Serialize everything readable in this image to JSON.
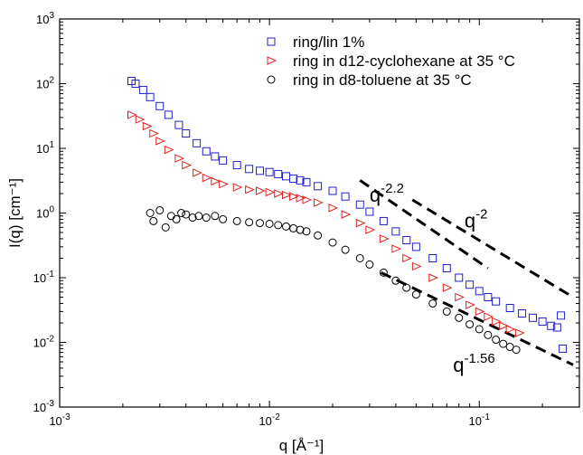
{
  "chart_data": {
    "type": "scatter",
    "x_scale": "log",
    "y_scale": "log",
    "xlim": [
      0.001,
      0.3
    ],
    "ylim": [
      0.001,
      1000
    ],
    "xlabel": "q [Å⁻¹]",
    "ylabel": "I(q) [cm⁻¹]",
    "x_ticks": [
      {
        "value": 0.001,
        "base": "10",
        "exp": "-3"
      },
      {
        "value": 0.01,
        "base": "10",
        "exp": "-2"
      },
      {
        "value": 0.1,
        "base": "10",
        "exp": "-1"
      }
    ],
    "y_ticks": [
      {
        "value": 0.001,
        "base": "10",
        "exp": "-3"
      },
      {
        "value": 0.01,
        "base": "10",
        "exp": "-2"
      },
      {
        "value": 0.1,
        "base": "10",
        "exp": "-1"
      },
      {
        "value": 1,
        "base": "10",
        "exp": "0"
      },
      {
        "value": 10,
        "base": "10",
        "exp": "1"
      },
      {
        "value": 100,
        "base": "10",
        "exp": "2"
      },
      {
        "value": 1000,
        "base": "10",
        "exp": "3"
      }
    ],
    "legend_position": "top-right",
    "series": [
      {
        "name": "ring/lin 1%",
        "marker": "square",
        "color": "#2020d0",
        "points": [
          [
            0.0022,
            110
          ],
          [
            0.0023,
            100
          ],
          [
            0.0025,
            80
          ],
          [
            0.0027,
            62
          ],
          [
            0.003,
            45
          ],
          [
            0.0033,
            33
          ],
          [
            0.0037,
            23
          ],
          [
            0.004,
            17
          ],
          [
            0.0045,
            12
          ],
          [
            0.005,
            9.0
          ],
          [
            0.0055,
            7.5
          ],
          [
            0.006,
            6.5
          ],
          [
            0.007,
            5.5
          ],
          [
            0.008,
            4.8
          ],
          [
            0.009,
            4.5
          ],
          [
            0.01,
            4.3
          ],
          [
            0.011,
            4.0
          ],
          [
            0.012,
            3.7
          ],
          [
            0.013,
            3.4
          ],
          [
            0.014,
            3.2
          ],
          [
            0.015,
            3.0
          ],
          [
            0.017,
            2.6
          ],
          [
            0.02,
            2.2
          ],
          [
            0.023,
            1.8
          ],
          [
            0.027,
            1.35
          ],
          [
            0.03,
            1.05
          ],
          [
            0.035,
            0.75
          ],
          [
            0.04,
            0.52
          ],
          [
            0.045,
            0.38
          ],
          [
            0.05,
            0.3
          ],
          [
            0.06,
            0.2
          ],
          [
            0.07,
            0.14
          ],
          [
            0.08,
            0.1
          ],
          [
            0.09,
            0.078
          ],
          [
            0.1,
            0.062
          ],
          [
            0.11,
            0.05
          ],
          [
            0.12,
            0.043
          ],
          [
            0.14,
            0.034
          ],
          [
            0.16,
            0.028
          ],
          [
            0.18,
            0.024
          ],
          [
            0.2,
            0.021
          ],
          [
            0.22,
            0.018
          ],
          [
            0.235,
            0.017
          ],
          [
            0.245,
            0.026
          ],
          [
            0.25,
            0.008
          ]
        ]
      },
      {
        "name": "ring in d12-cyclohexane at 35 °C",
        "marker": "triangle-right",
        "color": "#e02020",
        "points": [
          [
            0.0022,
            33
          ],
          [
            0.0024,
            28
          ],
          [
            0.0026,
            22
          ],
          [
            0.0028,
            17
          ],
          [
            0.003,
            13
          ],
          [
            0.0033,
            9.5
          ],
          [
            0.0037,
            7.0
          ],
          [
            0.004,
            5.5
          ],
          [
            0.0045,
            4.2
          ],
          [
            0.005,
            3.5
          ],
          [
            0.0055,
            3.1
          ],
          [
            0.006,
            2.8
          ],
          [
            0.007,
            2.5
          ],
          [
            0.008,
            2.3
          ],
          [
            0.009,
            2.2
          ],
          [
            0.01,
            2.1
          ],
          [
            0.011,
            2.0
          ],
          [
            0.012,
            1.9
          ],
          [
            0.013,
            1.8
          ],
          [
            0.014,
            1.7
          ],
          [
            0.015,
            1.6
          ],
          [
            0.017,
            1.45
          ],
          [
            0.02,
            1.2
          ],
          [
            0.023,
            0.95
          ],
          [
            0.027,
            0.7
          ],
          [
            0.03,
            0.55
          ],
          [
            0.035,
            0.4
          ],
          [
            0.04,
            0.28
          ],
          [
            0.045,
            0.2
          ],
          [
            0.05,
            0.15
          ],
          [
            0.06,
            0.1
          ],
          [
            0.07,
            0.07
          ],
          [
            0.08,
            0.05
          ],
          [
            0.09,
            0.038
          ],
          [
            0.1,
            0.03
          ],
          [
            0.11,
            0.025
          ],
          [
            0.12,
            0.021
          ],
          [
            0.13,
            0.018
          ],
          [
            0.14,
            0.016
          ],
          [
            0.155,
            0.014
          ]
        ]
      },
      {
        "name": "ring in d8-toluene at 35 °C",
        "marker": "circle",
        "color": "#000000",
        "points": [
          [
            0.0027,
            1.0
          ],
          [
            0.0028,
            0.75
          ],
          [
            0.003,
            1.1
          ],
          [
            0.0032,
            0.6
          ],
          [
            0.0034,
            0.9
          ],
          [
            0.0036,
            0.8
          ],
          [
            0.0038,
            1.0
          ],
          [
            0.004,
            0.95
          ],
          [
            0.0043,
            0.85
          ],
          [
            0.0046,
            0.9
          ],
          [
            0.005,
            0.85
          ],
          [
            0.0055,
            0.9
          ],
          [
            0.006,
            0.8
          ],
          [
            0.007,
            0.75
          ],
          [
            0.008,
            0.72
          ],
          [
            0.009,
            0.7
          ],
          [
            0.01,
            0.68
          ],
          [
            0.011,
            0.65
          ],
          [
            0.012,
            0.62
          ],
          [
            0.013,
            0.58
          ],
          [
            0.014,
            0.55
          ],
          [
            0.015,
            0.52
          ],
          [
            0.017,
            0.45
          ],
          [
            0.02,
            0.35
          ],
          [
            0.023,
            0.27
          ],
          [
            0.027,
            0.2
          ],
          [
            0.03,
            0.16
          ],
          [
            0.035,
            0.12
          ],
          [
            0.04,
            0.09
          ],
          [
            0.045,
            0.07
          ],
          [
            0.05,
            0.055
          ],
          [
            0.06,
            0.04
          ],
          [
            0.07,
            0.03
          ],
          [
            0.08,
            0.024
          ],
          [
            0.09,
            0.019
          ],
          [
            0.1,
            0.016
          ],
          [
            0.11,
            0.013
          ],
          [
            0.12,
            0.011
          ],
          [
            0.13,
            0.0095
          ],
          [
            0.14,
            0.0085
          ],
          [
            0.15,
            0.0077
          ]
        ]
      }
    ],
    "reference_lines": [
      {
        "label": "q",
        "exp": "-2.2",
        "from": [
          0.027,
          3.2
        ],
        "to": [
          0.11,
          0.14
        ]
      },
      {
        "label": "q",
        "exp": "-2",
        "from": [
          0.048,
          1.6
        ],
        "to": [
          0.28,
          0.05
        ]
      },
      {
        "label": "q",
        "exp": "-1.56",
        "from": [
          0.034,
          0.12
        ],
        "to": [
          0.28,
          0.0045
        ]
      }
    ]
  }
}
